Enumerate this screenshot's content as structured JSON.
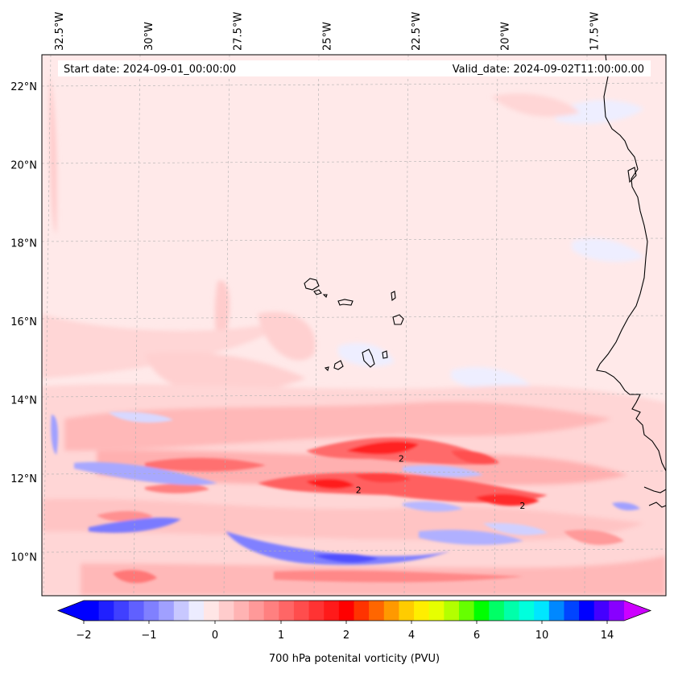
{
  "chart_data": {
    "type": "heatmap",
    "title": "",
    "start_date_text": "Start date: 2024-09-01_00:00:00",
    "valid_date_text": "Valid_date: 2024-09-02T11:00:00.00",
    "map": {
      "lon_range": [
        -33.0,
        -15.5
      ],
      "lat_range": [
        9.0,
        22.8
      ],
      "lon_ticks": [
        {
          "value": -32.5,
          "label": "32.5°W"
        },
        {
          "value": -30.0,
          "label": "30°W"
        },
        {
          "value": -27.5,
          "label": "27.5°W"
        },
        {
          "value": -25.0,
          "label": "25°W"
        },
        {
          "value": -22.5,
          "label": "22.5°W"
        },
        {
          "value": -20.0,
          "label": "20°W"
        },
        {
          "value": -17.5,
          "label": "17.5°W"
        }
      ],
      "lat_ticks": [
        {
          "value": 22,
          "label": "22°N"
        },
        {
          "value": 20,
          "label": "20°N"
        },
        {
          "value": 18,
          "label": "18°N"
        },
        {
          "value": 16,
          "label": "16°N"
        },
        {
          "value": 14,
          "label": "14°N"
        },
        {
          "value": 12,
          "label": "12°N"
        },
        {
          "value": 10,
          "label": "10°N"
        }
      ],
      "gridlines": true,
      "contour_labels": [
        {
          "lon": -23.0,
          "lat": 12.5,
          "text": "2"
        },
        {
          "lon": -24.2,
          "lat": 11.7,
          "text": "2"
        },
        {
          "lon": -19.6,
          "lat": 11.3,
          "text": "2"
        }
      ],
      "features": [
        {
          "name": "Cabo Verde islands",
          "type": "coastline"
        },
        {
          "name": "West African coast",
          "type": "coastline"
        }
      ]
    },
    "colorbar": {
      "label": "700 hPa potenital vorticity (PVU)",
      "extend": "both",
      "levels_count": 34,
      "tick_labels": [
        "−2",
        "−1",
        "0",
        "1",
        "2",
        "4",
        "6",
        "10",
        "14"
      ],
      "colors": [
        "#0000ff",
        "#2020ff",
        "#4040ff",
        "#6060ff",
        "#8080ff",
        "#a0a0ff",
        "#c8c8ff",
        "#ececff",
        "#ffe6e6",
        "#ffcccc",
        "#ffb3b3",
        "#ff9999",
        "#ff8080",
        "#ff6666",
        "#ff4d4d",
        "#ff3333",
        "#ff1a1a",
        "#ff0000",
        "#ff3300",
        "#ff6600",
        "#ff9900",
        "#ffcc00",
        "#ffee00",
        "#e6ff00",
        "#b3ff00",
        "#66ff00",
        "#00ff00",
        "#00ff66",
        "#00ffaa",
        "#00ffdd",
        "#00e6ff",
        "#0088ff",
        "#0044ff",
        "#0000ff",
        "#4400ff",
        "#8800ff"
      ],
      "under_color": "#0000ff",
      "over_color": "#cc00ff"
    }
  }
}
